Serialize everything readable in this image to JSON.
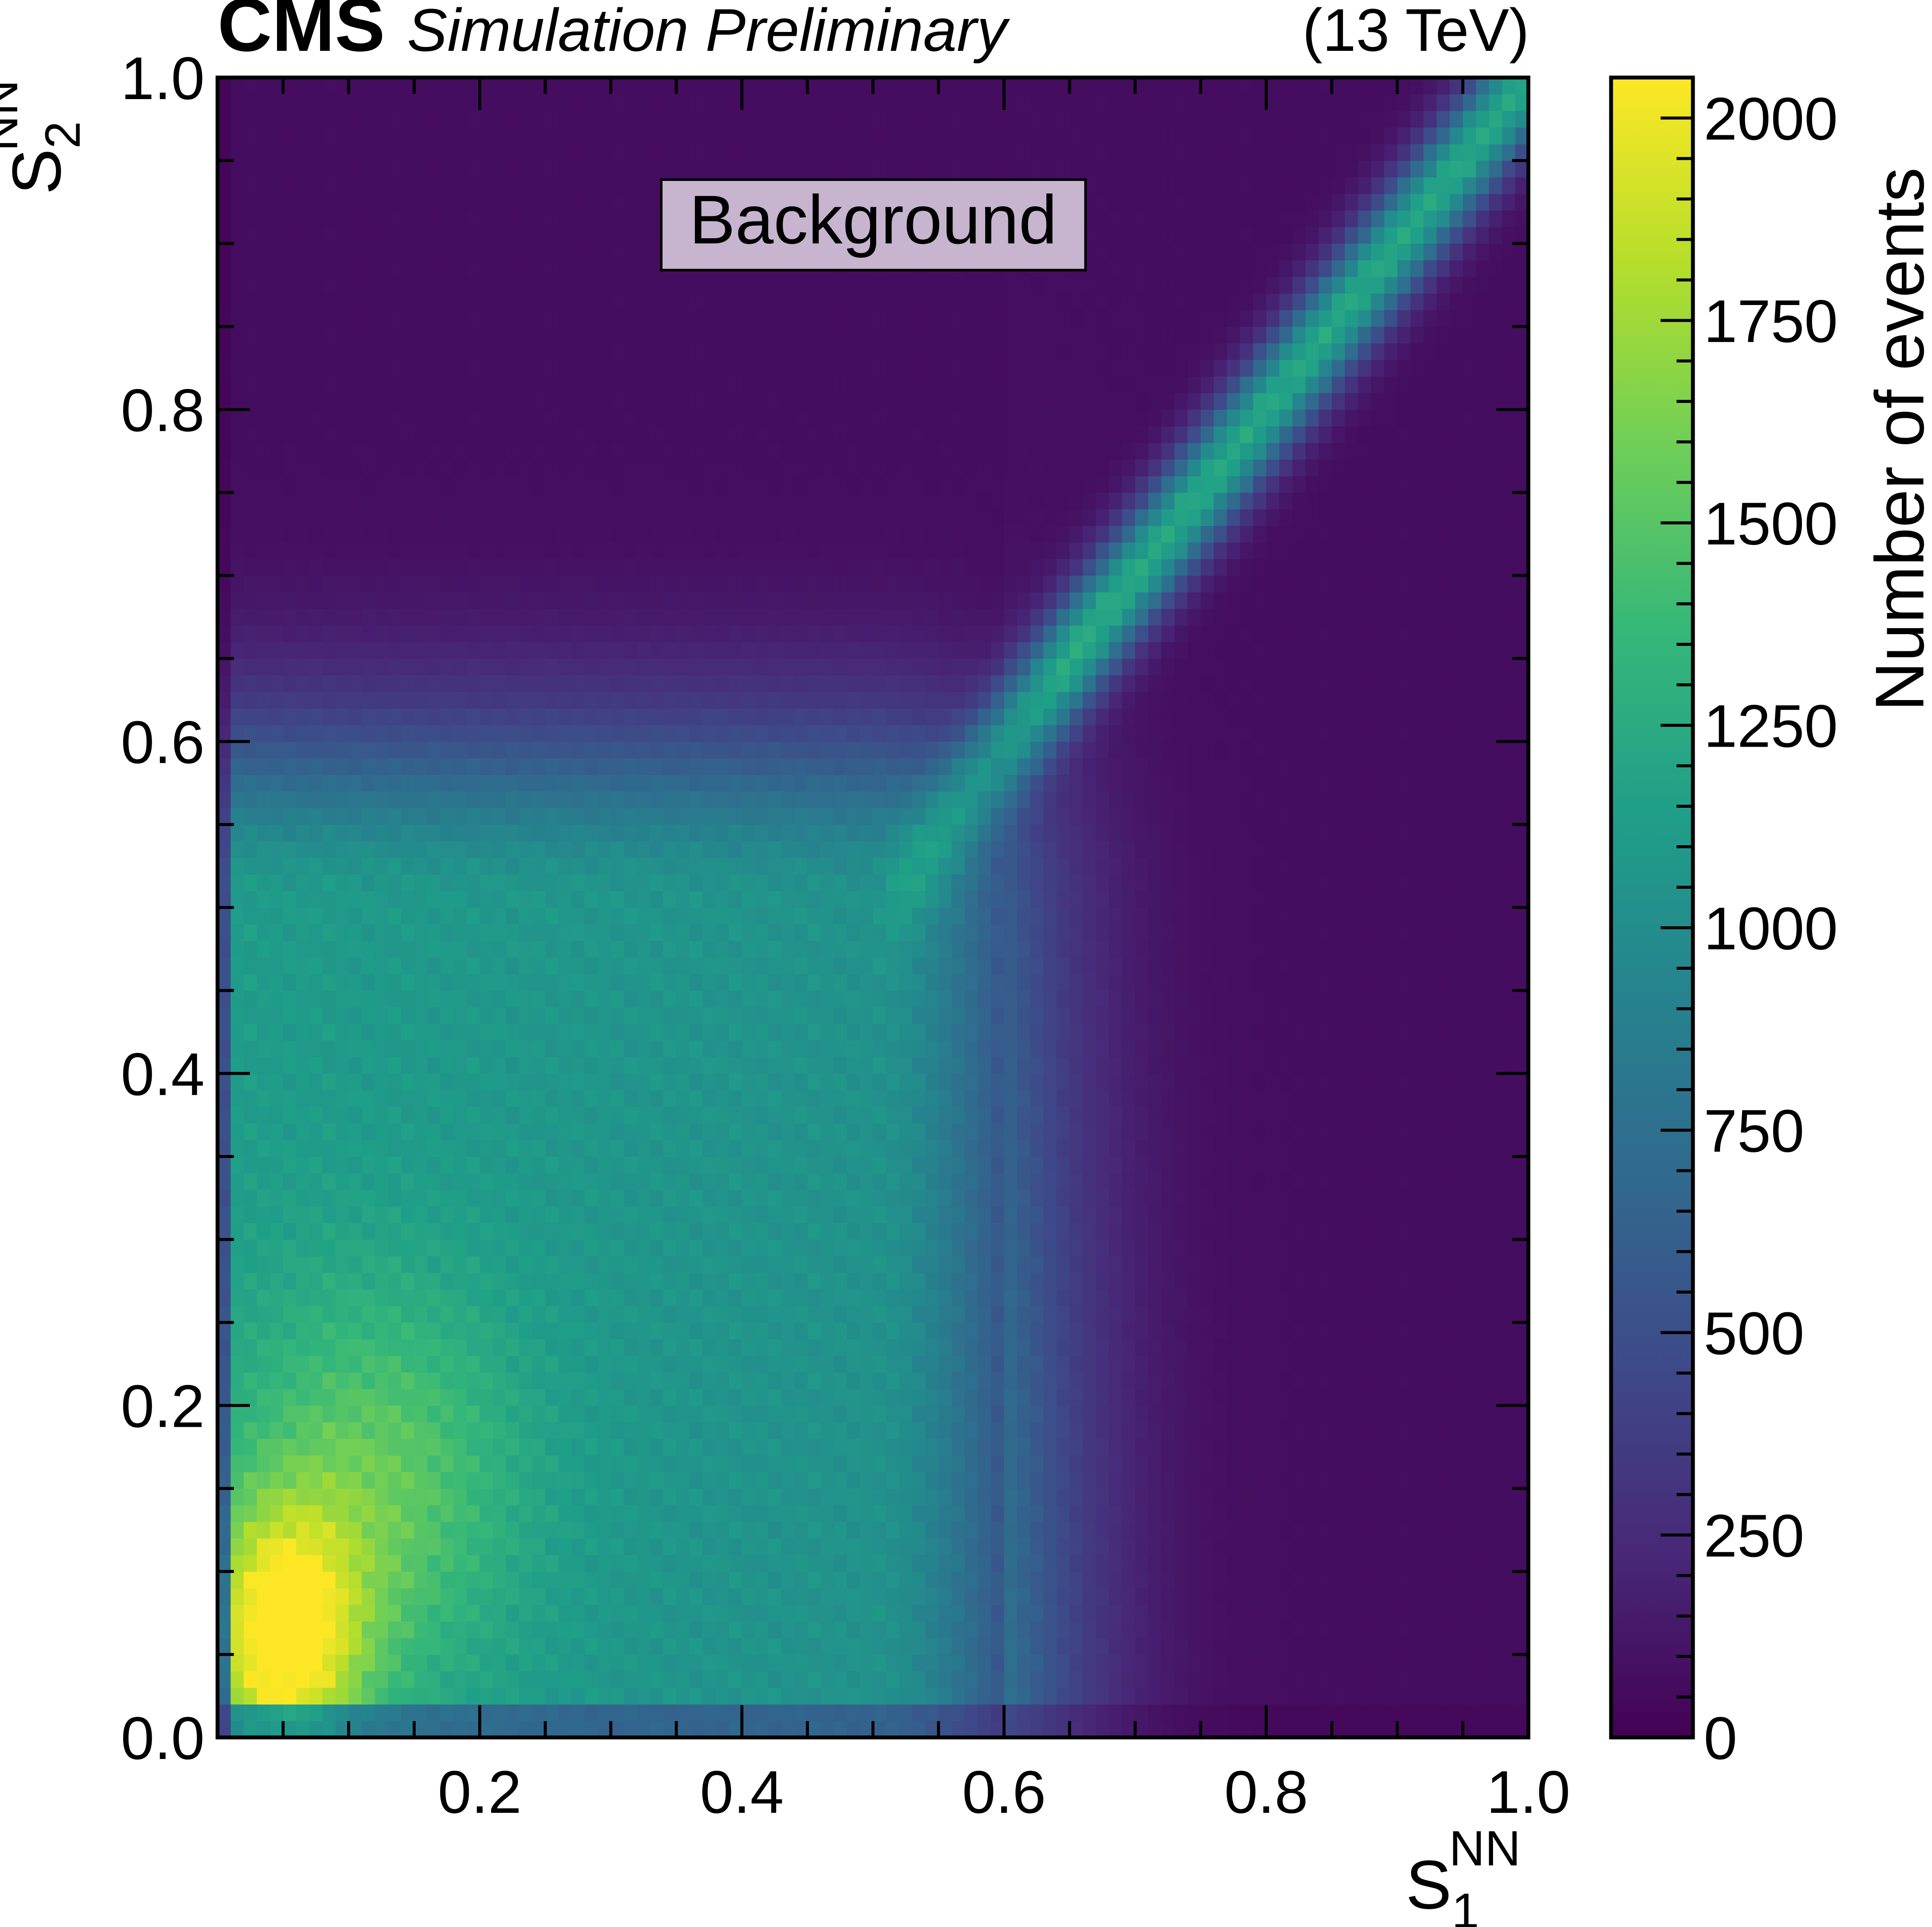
{
  "header": {
    "experiment": "CMS",
    "status": "Simulation Preliminary",
    "energy": "(13 TeV)"
  },
  "chart_data": {
    "type": "heatmap",
    "annotation": "Background",
    "xlabel": {
      "base": "S",
      "sup": "NN",
      "sub": "1"
    },
    "ylabel": {
      "base": "S",
      "sup": "NN",
      "sub": "2"
    },
    "xlim": [
      0.0,
      1.0
    ],
    "ylim": [
      0.0,
      1.0
    ],
    "x_ticks": [
      "0.2",
      "0.4",
      "0.6",
      "0.8",
      "1.0"
    ],
    "x_tick_values": [
      0.2,
      0.4,
      0.6,
      0.8,
      1.0
    ],
    "y_ticks": [
      "0.0",
      "0.2",
      "0.4",
      "0.6",
      "0.8",
      "1.0"
    ],
    "y_tick_values": [
      0.0,
      0.2,
      0.4,
      0.6,
      0.8,
      1.0
    ],
    "colorbar": {
      "label": "Number of events",
      "colormap": "viridis",
      "range": [
        0,
        2050
      ],
      "ticks": [
        "0",
        "250",
        "500",
        "750",
        "1000",
        "1250",
        "1500",
        "1750",
        "2000"
      ],
      "tick_values": [
        0,
        250,
        500,
        750,
        1000,
        1250,
        1500,
        1750,
        2000
      ]
    },
    "bins": {
      "x": 100,
      "y": 100
    },
    "grid": false,
    "density_description_points": [
      {
        "x": 0.04,
        "y": 0.04,
        "value": 2000
      },
      {
        "x": 0.1,
        "y": 0.15,
        "value": 1600
      },
      {
        "x": 0.15,
        "y": 0.45,
        "value": 1300
      },
      {
        "x": 0.4,
        "y": 0.4,
        "value": 1000
      },
      {
        "x": 0.7,
        "y": 0.7,
        "value": 1200
      },
      {
        "x": 0.9,
        "y": 0.9,
        "value": 1200
      },
      {
        "x": 0.85,
        "y": 0.3,
        "value": 100
      },
      {
        "x": 0.5,
        "y": 0.9,
        "value": 60
      }
    ]
  }
}
